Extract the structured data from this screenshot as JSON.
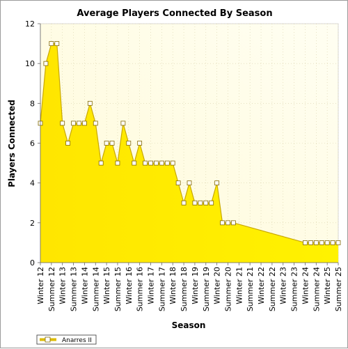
{
  "chart_data": {
    "type": "area",
    "title": "Average Players Connected By Season",
    "xlabel": "Season",
    "ylabel": "Players Connected",
    "ylim": [
      0,
      12
    ],
    "yticks": [
      0,
      2,
      4,
      6,
      8,
      10,
      12
    ],
    "grid": true,
    "legend_position": "bottom-left",
    "x_tick_labels": [
      "Winter 12",
      "Summer 12",
      "Winter 13",
      "Summer 13",
      "Winter 14",
      "Summer 14",
      "Winter 15",
      "Summer 15",
      "Winter 16",
      "Summer 16",
      "Winter 17",
      "Summer 17",
      "Winter 18",
      "Summer 18",
      "Winter 19",
      "Summer 19",
      "Winter 20",
      "Summer 20",
      "Winter 21",
      "Summer 21",
      "Winter 22",
      "Summer 22",
      "Winter 23",
      "Summer 23",
      "Winter 24",
      "Summer 24",
      "Winter 25",
      "Summer 25"
    ],
    "series": [
      {
        "name": "Anarres II",
        "color": "#ffee00",
        "points": [
          {
            "x": 0,
            "y": 7
          },
          {
            "x": 0.5,
            "y": 10
          },
          {
            "x": 1,
            "y": 11
          },
          {
            "x": 1.5,
            "y": 11
          },
          {
            "x": 2,
            "y": 7
          },
          {
            "x": 2.5,
            "y": 6
          },
          {
            "x": 3,
            "y": 7
          },
          {
            "x": 3.5,
            "y": 7
          },
          {
            "x": 4,
            "y": 7
          },
          {
            "x": 4.5,
            "y": 8
          },
          {
            "x": 5,
            "y": 7
          },
          {
            "x": 5.5,
            "y": 5
          },
          {
            "x": 6,
            "y": 6
          },
          {
            "x": 6.5,
            "y": 6
          },
          {
            "x": 7,
            "y": 5
          },
          {
            "x": 7.5,
            "y": 7
          },
          {
            "x": 8,
            "y": 6
          },
          {
            "x": 8.5,
            "y": 5
          },
          {
            "x": 9,
            "y": 6
          },
          {
            "x": 9.5,
            "y": 5
          },
          {
            "x": 10,
            "y": 5
          },
          {
            "x": 10.5,
            "y": 5
          },
          {
            "x": 11,
            "y": 5
          },
          {
            "x": 11.5,
            "y": 5
          },
          {
            "x": 12,
            "y": 5
          },
          {
            "x": 12.5,
            "y": 4
          },
          {
            "x": 13,
            "y": 3
          },
          {
            "x": 13.5,
            "y": 4
          },
          {
            "x": 14,
            "y": 3
          },
          {
            "x": 14.5,
            "y": 3
          },
          {
            "x": 15,
            "y": 3
          },
          {
            "x": 15.5,
            "y": 3
          },
          {
            "x": 16,
            "y": 4
          },
          {
            "x": 16.5,
            "y": 2
          },
          {
            "x": 17,
            "y": 2
          },
          {
            "x": 17.5,
            "y": 2
          },
          {
            "x": 24,
            "y": 1
          },
          {
            "x": 24.5,
            "y": 1
          },
          {
            "x": 25,
            "y": 1
          },
          {
            "x": 25.5,
            "y": 1
          },
          {
            "x": 26,
            "y": 1
          },
          {
            "x": 26.5,
            "y": 1
          },
          {
            "x": 27,
            "y": 1
          }
        ]
      }
    ]
  }
}
